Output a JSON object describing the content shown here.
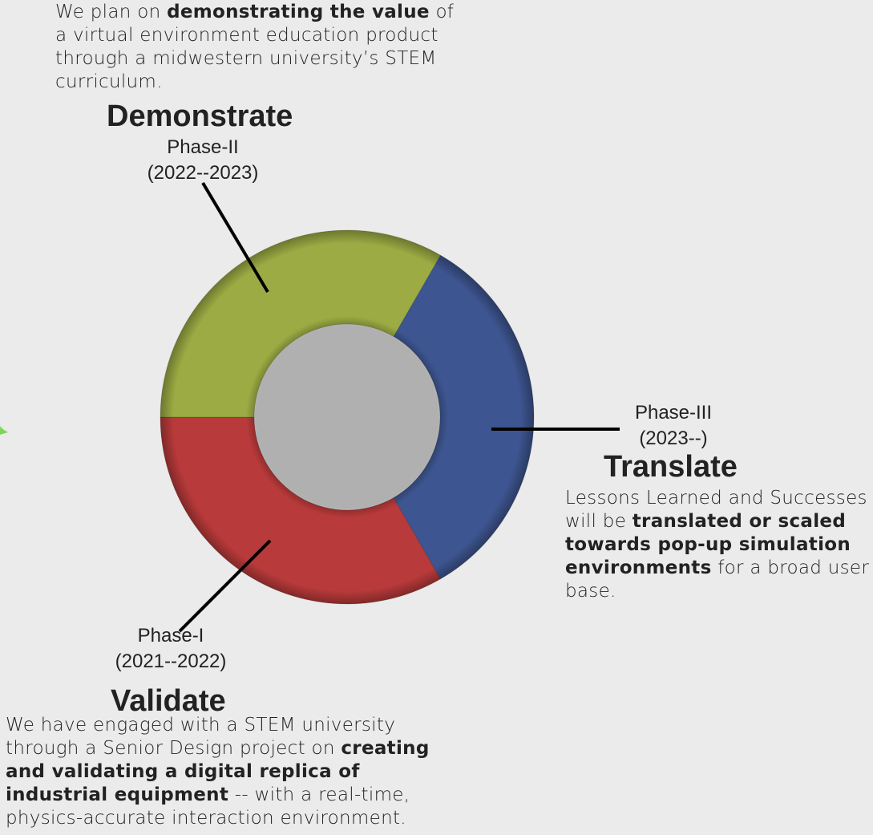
{
  "paragraphs": {
    "top": {
      "t1": "We plan on ",
      "b1": "demonstrating the value",
      "t2": " of a virtual environment education product through a midwestern university’s STEM curriculum."
    },
    "right": {
      "t1": "Lessons Learned and Successes will be ",
      "b1": "translated or scaled towards pop-up simulation environments",
      "t2": " for a broad user base."
    },
    "bottom": {
      "t1": "We have engaged with a STEM university through a Senior Design project on ",
      "b1": "creating and validating a digital replica of industrial equipment",
      "t2": " -- with a real-time, physics-accurate interaction environment."
    }
  },
  "phases": {
    "demonstrate": {
      "title": "Demonstrate",
      "name": "Phase-II",
      "years": "(2022--2023)"
    },
    "translate": {
      "title": "Translate",
      "name": "Phase-III",
      "years": "(2023--)"
    },
    "validate": {
      "title": "Validate",
      "name": "Phase-I",
      "years": "(2021--2022)"
    }
  },
  "chart_data": {
    "type": "pie",
    "variant": "donut",
    "slices": [
      {
        "label": "Phase-I",
        "value": 1,
        "color": "#b93a3a"
      },
      {
        "label": "Phase-II",
        "value": 1,
        "color": "#3d5590"
      },
      {
        "label": "Phase-III",
        "value": 1,
        "color": "#9cab43"
      }
    ]
  },
  "colors": {
    "background": "#ebebeb",
    "text": "#222222",
    "phase1": "#b93a3a",
    "phase2": "#3d5590",
    "phase3": "#9cab43"
  }
}
